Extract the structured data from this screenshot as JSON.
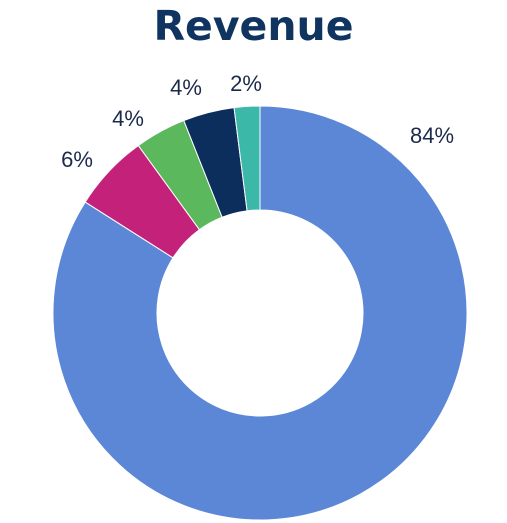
{
  "chart_data": {
    "type": "pie",
    "variant": "donut",
    "title": "Revenue",
    "slices": [
      {
        "label": "84%",
        "value": 84,
        "color": "#5b87d6"
      },
      {
        "label": "6%",
        "value": 6,
        "color": "#c4227a"
      },
      {
        "label": "4%",
        "value": 4,
        "color": "#5cb85c"
      },
      {
        "label": "4%",
        "value": 4,
        "color": "#0c2e5c"
      },
      {
        "label": "2%",
        "value": 2,
        "color": "#3bb8a8"
      }
    ],
    "legend": "none",
    "grid": false
  }
}
